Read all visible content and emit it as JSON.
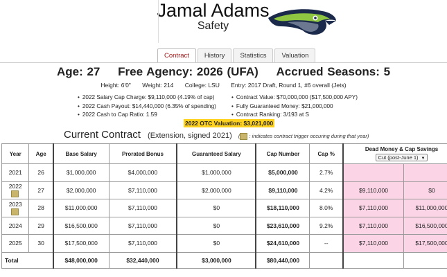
{
  "player": {
    "name": "Jamal Adams",
    "position": "Safety",
    "age_label": "Age: 27",
    "fa_label": "Free Agency: 2026 (UFA)",
    "seasons_label": "Accrued Seasons: 5",
    "height": "Height: 6'0\"",
    "weight": "Weight: 214",
    "college": "College: LSU",
    "entry": "Entry: 2017 Draft, Round 1, #6 overall (Jets)"
  },
  "team_logo": "seahawks-logo",
  "tabs": [
    {
      "label": "Contract",
      "active": true
    },
    {
      "label": "History"
    },
    {
      "label": "Statistics"
    },
    {
      "label": "Valuation"
    }
  ],
  "bullets_left": [
    "2022 Salary Cap Charge: $9,110,000 (4.19% of cap)",
    "2022 Cash Payout: $14,440,000 (6.35% of spending)",
    "2022 Cash to Cap Ratio: 1.59"
  ],
  "bullets_right": [
    "Contract Value: $70,000,000 ($17,500,000 APY)",
    "Fully Guaranteed Money: $21,000,000",
    "Contract Ranking: 3/193 at S"
  ],
  "otc_valuation": "2022 OTC Valuation: $3,021,000",
  "current_contract": {
    "title": "Current Contract",
    "extension": "(Extension, signed 2021)",
    "note": ": indicates contract trigger occuring during that year)",
    "note_prefix": "("
  },
  "table": {
    "headers": {
      "year": "Year",
      "age": "Age",
      "base": "Base Salary",
      "prorated": "Prorated Bonus",
      "guaranteed": "Guaranteed Salary",
      "cap": "Cap Number",
      "cap_pct": "Cap %",
      "dead_money": "Dead Money & Cap Savings",
      "select": "Cut (post-June 1)"
    },
    "rows": [
      {
        "year": "2021",
        "age": "26",
        "base": "$1,000,000",
        "prorated": "$4,000,000",
        "guaranteed": "$1,000,000",
        "cap": "$5,000,000",
        "pct": "2.7%",
        "dead": "",
        "savings": "",
        "trigger": false
      },
      {
        "year": "2022",
        "age": "27",
        "base": "$2,000,000",
        "prorated": "$7,110,000",
        "guaranteed": "$2,000,000",
        "cap": "$9,110,000",
        "pct": "4.2%",
        "dead": "$9,110,000",
        "savings": "$0",
        "trigger": true
      },
      {
        "year": "2023",
        "age": "28",
        "base": "$11,000,000",
        "prorated": "$7,110,000",
        "guaranteed": "$0",
        "cap": "$18,110,000",
        "pct": "8.0%",
        "dead": "$7,110,000",
        "savings": "$11,000,000",
        "trigger": true
      },
      {
        "year": "2024",
        "age": "29",
        "base": "$16,500,000",
        "prorated": "$7,110,000",
        "guaranteed": "$0",
        "cap": "$23,610,000",
        "pct": "9.2%",
        "dead": "$7,110,000",
        "savings": "$16,500,000",
        "trigger": false
      },
      {
        "year": "2025",
        "age": "30",
        "base": "$17,500,000",
        "prorated": "$7,110,000",
        "guaranteed": "$0",
        "cap": "$24,610,000",
        "pct": "--",
        "dead": "$7,110,000",
        "savings": "$17,500,000",
        "trigger": false
      }
    ],
    "total": {
      "label": "Total",
      "base": "$48,000,000",
      "prorated": "$32,440,000",
      "guaranteed": "$3,000,000",
      "cap": "$80,440,000"
    }
  }
}
